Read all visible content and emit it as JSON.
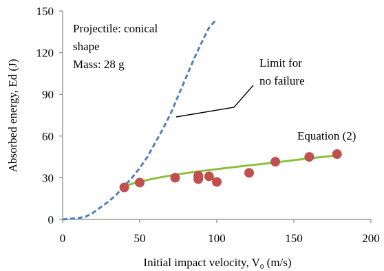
{
  "chart_data": {
    "type": "scatter",
    "xlabel": "Initial impact velocity, V",
    "xlabel_sub": "0",
    "xlabel_unit": " (m/s)",
    "ylabel": "Absorbed energy, Ed (J)",
    "xlim": [
      0,
      200
    ],
    "ylim": [
      0,
      150
    ],
    "x_ticks": [
      0,
      50,
      100,
      150,
      200
    ],
    "y_ticks": [
      0,
      30,
      60,
      90,
      120,
      150
    ],
    "grid": false,
    "annotations": {
      "projectile_line1": "Projectile:  conical",
      "projectile_line2": "shape",
      "mass": "Mass: 28 g",
      "limit_line1": "Limit  for",
      "limit_line2": "no failure",
      "equation": "Equation (2)"
    },
    "series": [
      {
        "kind": "scatter",
        "color": "#c0504d",
        "x": [
          40,
          50,
          73,
          88,
          88,
          95,
          100,
          121,
          138,
          160,
          178
        ],
        "y": [
          23,
          26.5,
          30,
          31.5,
          29,
          31,
          27,
          33.5,
          41.5,
          45,
          47
        ]
      },
      {
        "kind": "fit",
        "color": "#8cbf3f",
        "x": [
          40,
          50,
          60,
          70,
          80,
          90,
          100,
          110,
          120,
          130,
          140,
          150,
          160,
          170,
          178
        ],
        "y": [
          24,
          27.2,
          29.6,
          31.6,
          33.3,
          34.8,
          36.2,
          37.5,
          38.8,
          40.0,
          41.3,
          42.6,
          43.9,
          45.1,
          46
        ]
      },
      {
        "kind": "limit",
        "color": "#4f81bd",
        "x": [
          0,
          10,
          15,
          20,
          25,
          30,
          35,
          40,
          45,
          50,
          55,
          60,
          65,
          70,
          75,
          80,
          85,
          90,
          95,
          99
        ],
        "y": [
          0,
          1,
          2,
          5,
          9,
          13,
          18,
          24,
          30,
          37,
          45,
          55,
          65,
          76,
          89,
          102,
          115,
          127,
          138,
          143
        ]
      }
    ]
  }
}
